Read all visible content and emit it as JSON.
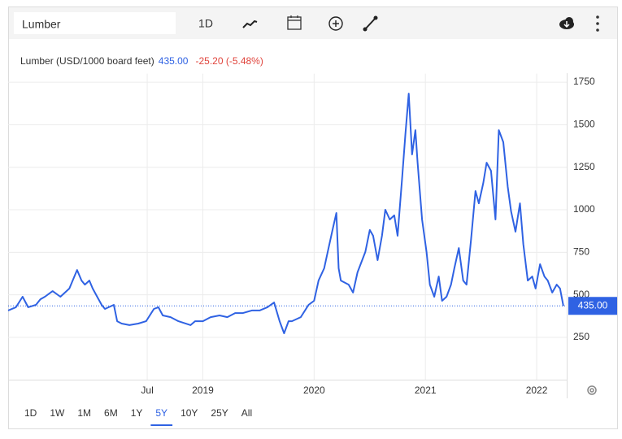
{
  "toolbar": {
    "search": "Lumber",
    "interval": "1D"
  },
  "chart_data": {
    "type": "line",
    "x": [
      2017.25,
      2017.32,
      2017.38,
      2017.43,
      2017.5,
      2017.54,
      2017.58,
      2017.65,
      2017.72,
      2017.8,
      2017.87,
      2017.91,
      2017.94,
      2017.98,
      2018.01,
      2018.05,
      2018.09,
      2018.12,
      2018.2,
      2018.23,
      2018.27,
      2018.34,
      2018.42,
      2018.49,
      2018.56,
      2018.6,
      2018.64,
      2018.71,
      2018.78,
      2018.89,
      2018.93,
      2019.0,
      2019.07,
      2019.15,
      2019.22,
      2019.29,
      2019.36,
      2019.44,
      2019.51,
      2019.58,
      2019.64,
      2019.69,
      2019.73,
      2019.77,
      2019.8,
      2019.88,
      2019.95,
      2020.0,
      2020.04,
      2020.09,
      2020.13,
      2020.17,
      2020.2,
      2020.22,
      2020.24,
      2020.31,
      2020.35,
      2020.39,
      2020.46,
      2020.5,
      2020.53,
      2020.57,
      2020.61,
      2020.64,
      2020.68,
      2020.72,
      2020.75,
      2020.79,
      2020.82,
      2020.85,
      2020.88,
      2020.91,
      2020.93,
      2020.97,
      2021.01,
      2021.04,
      2021.08,
      2021.12,
      2021.15,
      2021.19,
      2021.23,
      2021.26,
      2021.3,
      2021.34,
      2021.37,
      2021.41,
      2021.45,
      2021.48,
      2021.52,
      2021.55,
      2021.59,
      2021.63,
      2021.66,
      2021.7,
      2021.74,
      2021.77,
      2021.81,
      2021.85,
      2021.88,
      2021.92,
      2021.96,
      2021.99,
      2022.03,
      2022.07,
      2022.1,
      2022.14,
      2022.18,
      2022.21,
      2022.24
    ],
    "series": [
      {
        "name": "Lumber (USD/1000 board feet)",
        "color": "#2f62e3",
        "values": [
          408,
          427,
          489,
          427,
          441,
          474,
          489,
          522,
          489,
          537,
          646,
          584,
          560,
          584,
          537,
          489,
          441,
          417,
          441,
          345,
          331,
          322,
          331,
          345,
          417,
          427,
          379,
          369,
          345,
          322,
          345,
          345,
          369,
          379,
          369,
          393,
          393,
          408,
          408,
          427,
          455,
          345,
          274,
          345,
          345,
          369,
          441,
          465,
          584,
          656,
          775,
          895,
          981,
          656,
          584,
          560,
          513,
          632,
          752,
          881,
          847,
          704,
          847,
          1000,
          943,
          967,
          847,
          1182,
          1444,
          1683,
          1325,
          1468,
          1277,
          943,
          752,
          560,
          489,
          608,
          465,
          489,
          560,
          656,
          775,
          584,
          560,
          823,
          1110,
          1038,
          1158,
          1277,
          1229,
          943,
          1468,
          1397,
          1134,
          990,
          871,
          1038,
          799,
          584,
          608,
          537,
          680,
          608,
          584,
          513,
          560,
          537,
          435
        ]
      }
    ],
    "last_value": {
      "value": 435,
      "label": "435.00"
    },
    "change": "-25.20 (-5.48%)",
    "xlim": [
      2017.25,
      2022.27
    ],
    "xticks": [
      {
        "value": 2018.5,
        "label": "Jul"
      },
      2019,
      2020,
      2021,
      2022
    ],
    "ylim": [
      0,
      1800
    ],
    "yticks": [
      250,
      500,
      750,
      1000,
      1250,
      1500,
      1750
    ],
    "grid": true
  },
  "ranges": {
    "options": [
      "1D",
      "1W",
      "1M",
      "6M",
      "1Y",
      "5Y",
      "10Y",
      "25Y",
      "All"
    ],
    "selected": 5
  }
}
